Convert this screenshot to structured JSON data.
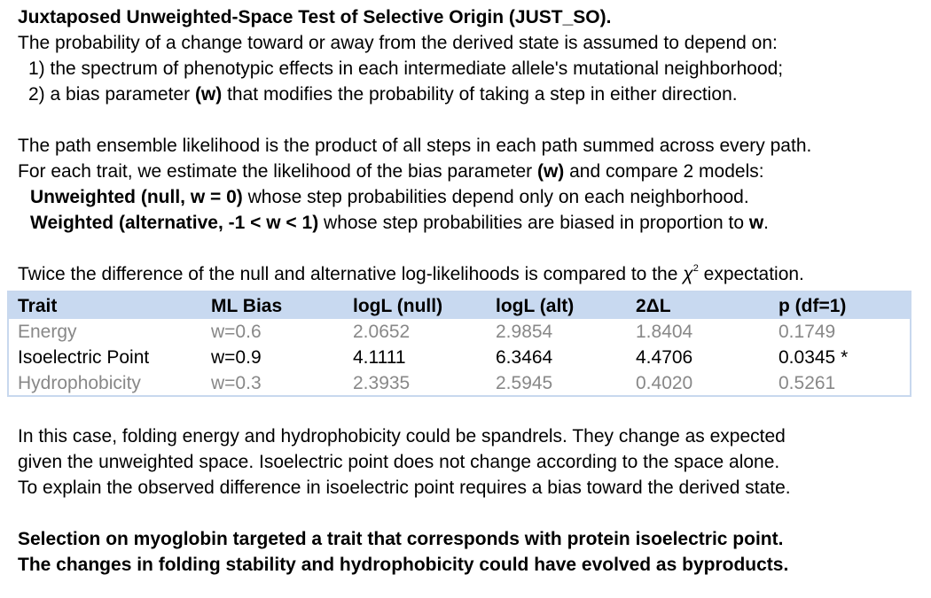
{
  "intro": {
    "title": "Juxtaposed Unweighted-Space Test of Selective Origin (JUST_SO).",
    "line1": "The probability of a change toward or away from the derived state is assumed to depend on:",
    "line2": "1) the spectrum of phenotypic effects in each intermediate allele's mutational neighborhood;",
    "line3_pre": "2) a bias parameter ",
    "line3_bold": "(w)",
    "line3_post": " that modifies the probability of taking a step in either direction."
  },
  "models": {
    "line1": "The path ensemble likelihood is the product of all steps in each path summed across every path.",
    "line2_pre": "For each trait, we estimate the likelihood of the bias parameter ",
    "line2_bold": "(w)",
    "line2_post": " and compare 2 models:",
    "null_bold": "Unweighted (null, w = 0)",
    "null_text": " whose step probabilities depend only on each neighborhood.",
    "alt_bold": "Weighted (alternative, -1 < w < 1)",
    "alt_text": " whose step probabilities are biased in proportion to ",
    "alt_w": "w",
    "alt_end": "."
  },
  "compare": {
    "pre": "Twice the difference of the null and alternative log-likelihoods is compared to the ",
    "chi": "χ",
    "sup": "2",
    "post": " expectation."
  },
  "table": {
    "headers": [
      "Trait",
      "ML Bias",
      "logL (null)",
      "logL (alt)",
      "2ΔL",
      "p (df=1)"
    ],
    "rows": [
      [
        "Energy",
        "w=0.6",
        "2.0652",
        "2.9854",
        "1.8404",
        "0.1749"
      ],
      [
        "Isoelectric Point",
        "w=0.9",
        "4.1111",
        "6.3464",
        "4.4706",
        "0.0345 *"
      ],
      [
        "Hydrophobicity",
        "w=0.3",
        "2.3935",
        "2.5945",
        "0.4020",
        "0.5261"
      ]
    ]
  },
  "conclusion": {
    "line1": "In this case, folding energy and hydrophobicity could be spandrels. They change as expected",
    "line2": "given the unweighted space. Isoelectric point does not change according to the space alone.",
    "line3": "To explain the observed difference in isoelectric point requires a bias toward the derived state.",
    "bold1": "Selection on myoglobin targeted a trait that corresponds with protein isoelectric point.",
    "bold2": "The changes in folding stability and hydrophobicity could have evolved as byproducts."
  },
  "colors": {
    "header_bg": "#c8d9f0",
    "dim_text": "#888888"
  }
}
